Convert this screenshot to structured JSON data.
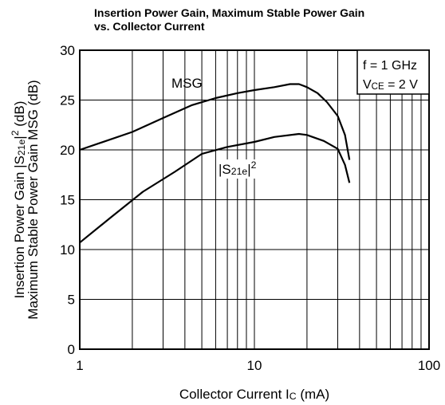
{
  "chart_data": {
    "type": "line",
    "title": [
      "Insertion Power Gain, Maximum Stable Power Gain",
      "vs. Collector Current"
    ],
    "x_label": [
      "Collector Current I",
      "C",
      " (mA)"
    ],
    "y_label": [
      [
        "Insertion Power Gain |S",
        "21e",
        "|",
        "2",
        " (dB)"
      ],
      [
        "Maximum Stable Power Gain MSG (dB)"
      ]
    ],
    "annotations": [
      [
        "f = 1 GHz"
      ],
      [
        "V",
        "CE",
        " = 2 V"
      ]
    ],
    "xscale": "log",
    "xlim": [
      1,
      100
    ],
    "xticks": [
      1,
      10,
      100
    ],
    "ylim": [
      0,
      30
    ],
    "yticks": [
      0,
      5,
      10,
      15,
      20,
      25,
      30
    ],
    "grid": true,
    "series": [
      {
        "name": [
          "MSG"
        ],
        "color": "#000000",
        "x": [
          1,
          2,
          3,
          4.4,
          6,
          8,
          10,
          13,
          16,
          18,
          20,
          23,
          26,
          30,
          33,
          35
        ],
        "values": [
          20,
          21.8,
          23.2,
          24.5,
          25.2,
          25.7,
          26,
          26.3,
          26.6,
          26.6,
          26.3,
          25.7,
          24.8,
          23.4,
          21.5,
          19
        ]
      },
      {
        "name": [
          "|S",
          "21e",
          "|",
          "2"
        ],
        "color": "#000000",
        "x": [
          1,
          1.5,
          2.3,
          3.5,
          5,
          7,
          10,
          13,
          18,
          20,
          25,
          30,
          33,
          35
        ],
        "values": [
          10.7,
          13.2,
          15.8,
          17.8,
          19.6,
          20.3,
          20.8,
          21.3,
          21.6,
          21.5,
          20.9,
          20.1,
          18.5,
          16.7
        ]
      }
    ]
  }
}
